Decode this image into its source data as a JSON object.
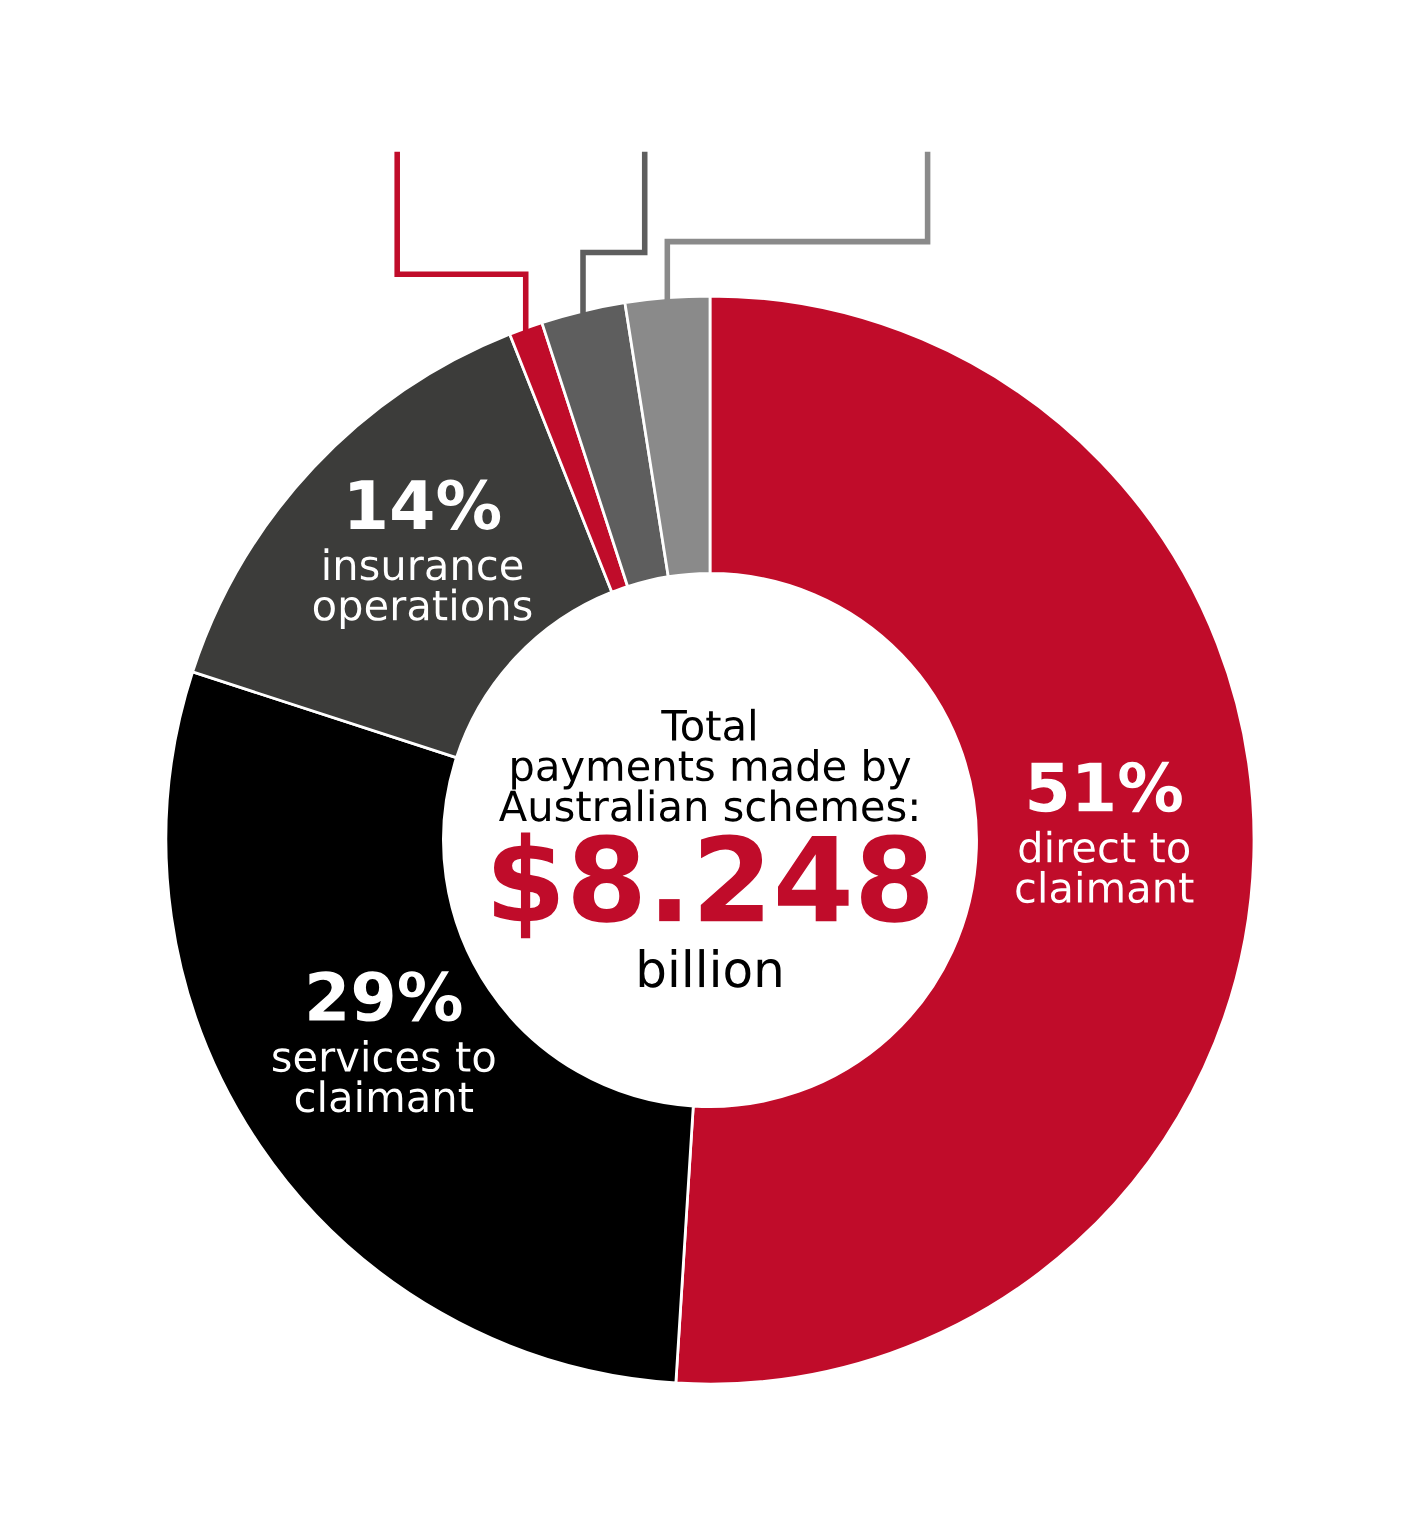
{
  "chart_data": {
    "type": "donut",
    "categories": [
      "direct to claimant",
      "services to claimant",
      "insurance operations",
      null,
      null,
      null
    ],
    "values": [
      51,
      29,
      14,
      1,
      2.5,
      2.5
    ],
    "colors": [
      "#c00c2a",
      "#000000",
      "#3c3c3a",
      "#c00c2a",
      "#5e5e5e",
      "#8a8a8a"
    ],
    "value_labels": [
      "51%",
      "29%",
      "14%",
      null,
      null,
      null
    ],
    "annotations": [
      "Total payments made by Australian schemes:",
      "$8.248",
      "billion"
    ]
  }
}
